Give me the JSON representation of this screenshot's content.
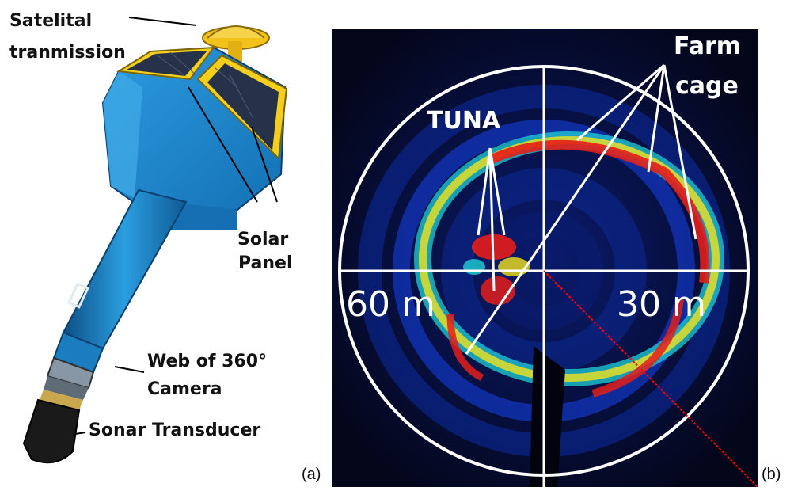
{
  "panel_a": {
    "tag": "(a)",
    "labels": {
      "satelital": "Satelital",
      "transmission": "tranmission",
      "solar": "Solar",
      "panel": "Panel",
      "web": "Web of 360°",
      "camera": "Camera",
      "sonar": "Sonar Transducer"
    },
    "colors": {
      "body": "#1f86c6",
      "panel_frame": "#f4cf1c",
      "solar_cells": "#25324a"
    }
  },
  "panel_b": {
    "tag": "(b)",
    "labels": {
      "tuna": "TUNA",
      "farm": "Farm",
      "cage": "cage",
      "range_left": "60 m",
      "range_right": "30 m"
    },
    "colors": {
      "background": "#04061a",
      "echo_low": "#0b2a9a",
      "echo_mid": "#1fd0d8",
      "echo_high": "#e41d1a",
      "bearing_line": "#ff0000"
    }
  }
}
